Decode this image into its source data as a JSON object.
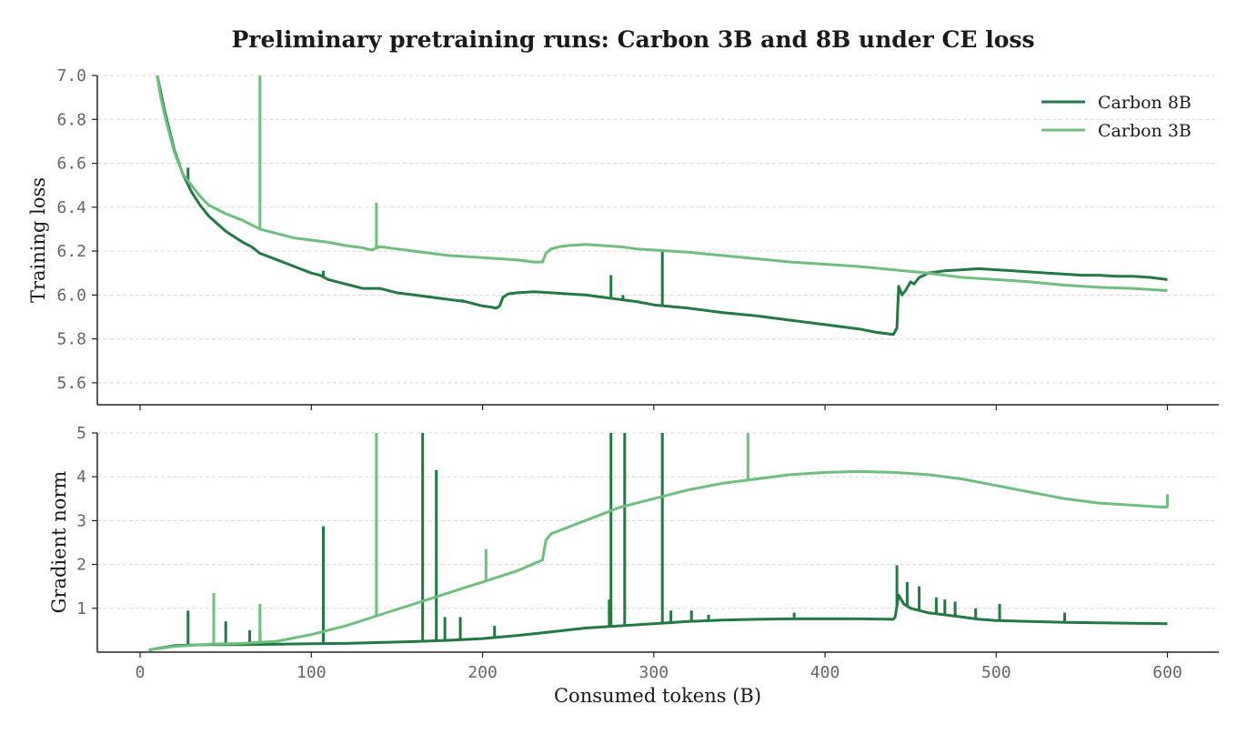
{
  "chart_data": {
    "title": "Preliminary pretraining runs: Carbon 3B and 8B under CE loss",
    "xlabel": "Consumed tokens (B)",
    "xlim": [
      -25,
      630
    ],
    "xticks": [
      0,
      100,
      200,
      300,
      400,
      500,
      600
    ],
    "xtick_labels": [
      "0",
      "100",
      "200",
      "300",
      "400",
      "500",
      "600"
    ],
    "colors": {
      "Carbon 8B": "#217a43",
      "Carbon 3B": "#6dbf7e"
    },
    "legend": {
      "location": "top-right",
      "entries": [
        "Carbon 8B",
        "Carbon 3B"
      ]
    },
    "subplots": [
      {
        "name": "loss",
        "type": "line",
        "ylabel": "Training loss",
        "ylim": [
          5.5,
          7.0
        ],
        "yticks": [
          5.6,
          5.8,
          6.0,
          6.2,
          6.4,
          6.6,
          6.8,
          7.0
        ],
        "ytick_labels": [
          "5.6",
          "5.8",
          "6.0",
          "6.2",
          "6.4",
          "6.6",
          "6.8",
          "7.0"
        ],
        "grid": true,
        "series": [
          {
            "name": "Carbon 8B",
            "x": [
              10,
              14,
              20,
              25,
              30,
              35,
              40,
              50,
              60,
              65,
              70,
              80,
              90,
              100,
              105,
              110,
              120,
              130,
              135,
              140,
              150,
              160,
              170,
              180,
              190,
              200,
              205,
              208,
              210,
              212,
              215,
              220,
              230,
              240,
              250,
              260,
              270,
              280,
              290,
              300,
              320,
              340,
              360,
              380,
              400,
              420,
              430,
              440,
              442,
              443,
              445,
              447,
              450,
              452,
              455,
              458,
              460,
              470,
              480,
              490,
              500,
              510,
              520,
              530,
              540,
              550,
              560,
              570,
              580,
              590,
              600
            ],
            "y": [
              7.0,
              6.85,
              6.66,
              6.55,
              6.47,
              6.41,
              6.36,
              6.29,
              6.24,
              6.22,
              6.19,
              6.16,
              6.13,
              6.1,
              6.09,
              6.07,
              6.05,
              6.03,
              6.03,
              6.03,
              6.01,
              6.0,
              5.99,
              5.98,
              5.97,
              5.95,
              5.945,
              5.94,
              5.95,
              5.99,
              6.005,
              6.01,
              6.015,
              6.01,
              6.005,
              6.0,
              5.99,
              5.98,
              5.97,
              5.955,
              5.94,
              5.92,
              5.905,
              5.885,
              5.865,
              5.845,
              5.83,
              5.82,
              5.85,
              6.04,
              6.0,
              6.02,
              6.06,
              6.05,
              6.08,
              6.09,
              6.1,
              6.11,
              6.115,
              6.12,
              6.115,
              6.11,
              6.105,
              6.1,
              6.095,
              6.09,
              6.09,
              6.085,
              6.085,
              6.08,
              6.07
            ],
            "spikes": [
              [
                28,
                6.58
              ],
              [
                107,
                6.11
              ],
              [
                188,
                5.98
              ],
              [
                275,
                6.09
              ],
              [
                282,
                6.0
              ],
              [
                305,
                6.2
              ]
            ]
          },
          {
            "name": "Carbon 3B",
            "x": [
              10,
              12,
              15,
              20,
              25,
              30,
              35,
              40,
              50,
              60,
              70,
              80,
              90,
              100,
              110,
              120,
              130,
              135,
              140,
              150,
              160,
              170,
              180,
              190,
              200,
              210,
              220,
              230,
              235,
              237,
              240,
              245,
              250,
              260,
              270,
              280,
              290,
              300,
              320,
              340,
              360,
              380,
              400,
              420,
              440,
              460,
              480,
              500,
              520,
              540,
              560,
              580,
              600
            ],
            "y": [
              7.0,
              6.9,
              6.8,
              6.65,
              6.55,
              6.5,
              6.45,
              6.41,
              6.37,
              6.34,
              6.3,
              6.28,
              6.26,
              6.25,
              6.24,
              6.225,
              6.215,
              6.205,
              6.22,
              6.21,
              6.2,
              6.19,
              6.18,
              6.175,
              6.17,
              6.165,
              6.16,
              6.15,
              6.15,
              6.19,
              6.21,
              6.22,
              6.225,
              6.23,
              6.225,
              6.22,
              6.21,
              6.205,
              6.195,
              6.18,
              6.165,
              6.15,
              6.14,
              6.13,
              6.115,
              6.1,
              6.08,
              6.07,
              6.06,
              6.045,
              6.035,
              6.03,
              6.02
            ],
            "spikes": [
              [
                70,
                7.1
              ],
              [
                138,
                6.42
              ]
            ]
          }
        ]
      },
      {
        "name": "gradnorm",
        "type": "line",
        "ylabel": "Gradient norm",
        "ylim": [
          0,
          5
        ],
        "yticks": [
          1,
          2,
          3,
          4,
          5
        ],
        "ytick_labels": [
          "1",
          "2",
          "3",
          "4",
          "5"
        ],
        "grid": true,
        "series": [
          {
            "name": "Carbon 8B",
            "x": [
              5,
              20,
              40,
              60,
              80,
              100,
              120,
              140,
              160,
              180,
              200,
              220,
              240,
              260,
              280,
              300,
              320,
              340,
              360,
              380,
              400,
              420,
              440,
              441,
              443,
              446,
              450,
              455,
              460,
              470,
              480,
              490,
              500,
              520,
              540,
              560,
              580,
              600
            ],
            "y": [
              0.05,
              0.15,
              0.17,
              0.17,
              0.18,
              0.19,
              0.2,
              0.22,
              0.24,
              0.27,
              0.31,
              0.38,
              0.46,
              0.55,
              0.6,
              0.65,
              0.7,
              0.73,
              0.75,
              0.76,
              0.76,
              0.76,
              0.75,
              0.8,
              1.3,
              1.1,
              1.0,
              0.95,
              0.9,
              0.85,
              0.8,
              0.75,
              0.72,
              0.7,
              0.68,
              0.67,
              0.66,
              0.65
            ],
            "spikes": [
              [
                28,
                0.95
              ],
              [
                50,
                0.7
              ],
              [
                64,
                0.5
              ],
              [
                70,
                0.5
              ],
              [
                107,
                2.87
              ],
              [
                165,
                5.2
              ],
              [
                173,
                4.15
              ],
              [
                178,
                0.8
              ],
              [
                187,
                0.8
              ],
              [
                207,
                0.6
              ],
              [
                274,
                1.2
              ],
              [
                275,
                5.2
              ],
              [
                283,
                5.2
              ],
              [
                305,
                5.2
              ],
              [
                310,
                0.95
              ],
              [
                322,
                0.95
              ],
              [
                332,
                0.85
              ],
              [
                382,
                0.9
              ],
              [
                442,
                1.98
              ],
              [
                448,
                1.6
              ],
              [
                455,
                1.5
              ],
              [
                465,
                1.25
              ],
              [
                470,
                1.2
              ],
              [
                476,
                1.15
              ],
              [
                488,
                1.0
              ],
              [
                502,
                1.1
              ],
              [
                540,
                0.9
              ]
            ]
          },
          {
            "name": "Carbon 3B",
            "x": [
              5,
              20,
              40,
              60,
              80,
              100,
              120,
              140,
              160,
              180,
              200,
              220,
              235,
              237,
              240,
              250,
              260,
              270,
              280,
              290,
              300,
              320,
              340,
              360,
              380,
              400,
              420,
              440,
              460,
              480,
              500,
              520,
              540,
              560,
              580,
              600
            ],
            "y": [
              0.05,
              0.13,
              0.18,
              0.2,
              0.25,
              0.4,
              0.6,
              0.85,
              1.1,
              1.35,
              1.6,
              1.85,
              2.1,
              2.55,
              2.7,
              2.85,
              3.0,
              3.15,
              3.3,
              3.4,
              3.5,
              3.7,
              3.85,
              3.95,
              4.05,
              4.1,
              4.12,
              4.1,
              4.05,
              3.95,
              3.8,
              3.65,
              3.5,
              3.4,
              3.35,
              3.3
            ],
            "spikes": [
              [
                43,
                1.35
              ],
              [
                70,
                1.1
              ],
              [
                138,
                5.2
              ],
              [
                202,
                2.35
              ],
              [
                355,
                5.2
              ],
              [
                600,
                3.6
              ]
            ]
          }
        ]
      }
    ]
  }
}
